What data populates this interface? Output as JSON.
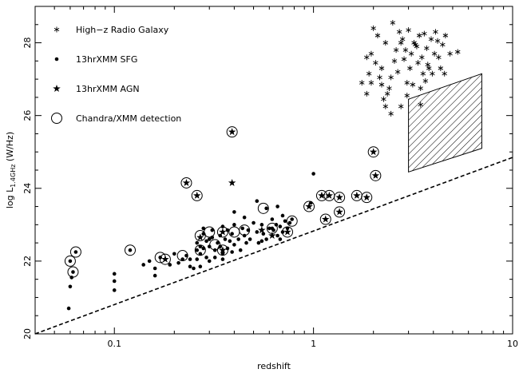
{
  "chart_data": {
    "type": "scatter",
    "title": "",
    "xlabel": "redshift",
    "ylabel_main": "log L",
    "ylabel_sub": "1.4GHz",
    "ylabel_unit": " (W/Hz)",
    "x_scale": "log",
    "xlim": [
      0.04,
      10
    ],
    "ylim": [
      20,
      29
    ],
    "x_ticks": [
      0.1,
      1,
      10
    ],
    "x_tick_labels": [
      "0.1",
      "1",
      "10"
    ],
    "y_ticks": [
      20,
      22,
      24,
      26,
      28
    ],
    "y_tick_labels": [
      "20",
      "22",
      "24",
      "26",
      "28"
    ],
    "grid": false,
    "legend_position": "top-left",
    "legend": [
      {
        "marker": "asterisk",
        "label": "High−z Radio Galaxy"
      },
      {
        "marker": "dot",
        "label": "13hrXMM SFG"
      },
      {
        "marker": "star",
        "label": "13hrXMM AGN"
      },
      {
        "marker": "circle",
        "label": "Chandra/XMM detection"
      }
    ],
    "detection_limit_line": {
      "style": "dashed",
      "points": [
        [
          0.04,
          20.0
        ],
        [
          10,
          24.85
        ]
      ]
    },
    "hatched_region": {
      "corners": [
        [
          3.0,
          24.45
        ],
        [
          7.0,
          25.1
        ],
        [
          7.0,
          27.15
        ],
        [
          3.0,
          26.45
        ]
      ]
    },
    "series": [
      {
        "name": "High−z Radio Galaxy",
        "marker": "asterisk",
        "points": [
          [
            2.0,
            28.4
          ],
          [
            2.1,
            28.2
          ],
          [
            2.3,
            28.0
          ],
          [
            2.5,
            28.55
          ],
          [
            2.7,
            28.3
          ],
          [
            2.8,
            28.1
          ],
          [
            3.0,
            28.35
          ],
          [
            3.2,
            28.0
          ],
          [
            3.4,
            28.2
          ],
          [
            3.6,
            28.25
          ],
          [
            3.3,
            27.9
          ],
          [
            2.9,
            27.8
          ],
          [
            1.95,
            27.7
          ],
          [
            1.85,
            27.6
          ],
          [
            2.05,
            27.45
          ],
          [
            1.9,
            27.15
          ],
          [
            1.95,
            26.9
          ],
          [
            1.85,
            26.6
          ],
          [
            2.15,
            27.05
          ],
          [
            2.2,
            27.3
          ],
          [
            2.4,
            26.75
          ],
          [
            2.55,
            27.5
          ],
          [
            2.6,
            27.8
          ],
          [
            2.65,
            27.2
          ],
          [
            2.75,
            28.0
          ],
          [
            2.85,
            27.55
          ],
          [
            3.1,
            27.7
          ],
          [
            3.25,
            27.95
          ],
          [
            3.5,
            27.6
          ],
          [
            3.7,
            27.85
          ],
          [
            3.8,
            27.3
          ],
          [
            3.55,
            27.15
          ],
          [
            3.35,
            27.45
          ],
          [
            3.05,
            27.3
          ],
          [
            2.95,
            26.9
          ],
          [
            3.15,
            26.85
          ],
          [
            3.45,
            26.75
          ],
          [
            3.65,
            26.95
          ],
          [
            3.75,
            27.4
          ],
          [
            3.95,
            27.15
          ],
          [
            4.05,
            27.7
          ],
          [
            4.25,
            27.6
          ],
          [
            4.35,
            27.3
          ],
          [
            4.55,
            27.15
          ],
          [
            4.85,
            27.7
          ],
          [
            4.45,
            27.95
          ],
          [
            4.2,
            28.05
          ],
          [
            4.1,
            28.3
          ],
          [
            3.9,
            28.1
          ],
          [
            4.6,
            28.2
          ],
          [
            5.3,
            27.75
          ],
          [
            2.45,
            27.05
          ],
          [
            2.35,
            26.6
          ],
          [
            2.25,
            26.45
          ],
          [
            2.2,
            26.85
          ],
          [
            2.95,
            26.55
          ],
          [
            3.45,
            26.3
          ],
          [
            2.75,
            26.25
          ],
          [
            2.3,
            26.25
          ],
          [
            1.75,
            26.9
          ],
          [
            2.45,
            26.05
          ]
        ]
      },
      {
        "name": "13hrXMM SFG",
        "marker": "dot",
        "points": [
          [
            0.06,
            22.0
          ],
          [
            0.062,
            21.7
          ],
          [
            0.064,
            22.25
          ],
          [
            0.061,
            21.55
          ],
          [
            0.06,
            21.3
          ],
          [
            0.059,
            20.7
          ],
          [
            0.1,
            21.65
          ],
          [
            0.1,
            21.45
          ],
          [
            0.1,
            21.2
          ],
          [
            0.12,
            22.3
          ],
          [
            0.14,
            21.9
          ],
          [
            0.15,
            22.0
          ],
          [
            0.16,
            21.8
          ],
          [
            0.16,
            21.6
          ],
          [
            0.17,
            22.1
          ],
          [
            0.19,
            21.9
          ],
          [
            0.2,
            22.2
          ],
          [
            0.21,
            21.95
          ],
          [
            0.22,
            22.05
          ],
          [
            0.23,
            22.15
          ],
          [
            0.24,
            21.85
          ],
          [
            0.25,
            21.8
          ],
          [
            0.26,
            22.05
          ],
          [
            0.26,
            22.3
          ],
          [
            0.26,
            22.5
          ],
          [
            0.27,
            22.2
          ],
          [
            0.27,
            22.4
          ],
          [
            0.28,
            22.35
          ],
          [
            0.28,
            22.75
          ],
          [
            0.29,
            22.1
          ],
          [
            0.29,
            22.55
          ],
          [
            0.3,
            22.0
          ],
          [
            0.3,
            22.4
          ],
          [
            0.31,
            22.65
          ],
          [
            0.31,
            22.85
          ],
          [
            0.32,
            22.3
          ],
          [
            0.32,
            22.1
          ],
          [
            0.33,
            22.5
          ],
          [
            0.34,
            22.7
          ],
          [
            0.34,
            22.4
          ],
          [
            0.35,
            22.2
          ],
          [
            0.35,
            22.05
          ],
          [
            0.36,
            22.6
          ],
          [
            0.37,
            22.85
          ],
          [
            0.37,
            22.35
          ],
          [
            0.38,
            22.55
          ],
          [
            0.39,
            22.75
          ],
          [
            0.39,
            22.25
          ],
          [
            0.4,
            22.45
          ],
          [
            0.4,
            23.0
          ],
          [
            0.42,
            22.6
          ],
          [
            0.43,
            22.3
          ],
          [
            0.44,
            22.9
          ],
          [
            0.45,
            22.7
          ],
          [
            0.46,
            22.5
          ],
          [
            0.47,
            22.85
          ],
          [
            0.48,
            22.6
          ],
          [
            0.5,
            23.05
          ],
          [
            0.52,
            22.8
          ],
          [
            0.53,
            22.5
          ],
          [
            0.55,
            23.0
          ],
          [
            0.56,
            22.75
          ],
          [
            0.58,
            22.6
          ],
          [
            0.6,
            22.9
          ],
          [
            0.62,
            23.15
          ],
          [
            0.63,
            22.85
          ],
          [
            0.65,
            23.0
          ],
          [
            0.66,
            22.7
          ],
          [
            0.68,
            22.95
          ],
          [
            0.7,
            22.8
          ],
          [
            0.72,
            23.1
          ],
          [
            0.74,
            22.9
          ],
          [
            0.76,
            23.05
          ],
          [
            0.52,
            23.65
          ],
          [
            0.58,
            23.45
          ],
          [
            0.4,
            23.35
          ],
          [
            0.45,
            23.2
          ],
          [
            0.66,
            23.5
          ],
          [
            0.7,
            23.25
          ],
          [
            0.35,
            22.95
          ],
          [
            0.3,
            22.6
          ],
          [
            0.28,
            22.9
          ],
          [
            0.27,
            21.85
          ],
          [
            0.24,
            22.05
          ],
          [
            0.55,
            22.55
          ],
          [
            0.62,
            22.9
          ],
          [
            0.68,
            22.6
          ],
          [
            0.78,
            23.15
          ],
          [
            1.0,
            24.4
          ],
          [
            0.97,
            23.6
          ]
        ]
      },
      {
        "name": "13hrXMM AGN",
        "marker": "star",
        "points": [
          [
            0.23,
            24.15
          ],
          [
            0.26,
            23.8
          ],
          [
            0.39,
            25.55
          ],
          [
            0.39,
            24.15
          ],
          [
            0.35,
            22.8
          ],
          [
            0.27,
            22.65
          ],
          [
            0.18,
            22.05
          ],
          [
            0.35,
            22.3
          ],
          [
            0.55,
            22.85
          ],
          [
            0.62,
            22.7
          ],
          [
            0.74,
            22.8
          ],
          [
            0.95,
            23.5
          ],
          [
            1.1,
            23.8
          ],
          [
            1.15,
            23.15
          ],
          [
            1.2,
            23.8
          ],
          [
            1.35,
            23.75
          ],
          [
            1.65,
            23.8
          ],
          [
            1.85,
            23.75
          ],
          [
            2.0,
            25.0
          ],
          [
            2.05,
            24.35
          ],
          [
            1.35,
            23.35
          ]
        ]
      },
      {
        "name": "Chandra/XMM detection",
        "marker": "circle",
        "points": [
          [
            0.06,
            22.0
          ],
          [
            0.062,
            21.7
          ],
          [
            0.064,
            22.25
          ],
          [
            0.12,
            22.3
          ],
          [
            0.17,
            22.1
          ],
          [
            0.22,
            22.15
          ],
          [
            0.23,
            24.15
          ],
          [
            0.26,
            23.8
          ],
          [
            0.27,
            22.7
          ],
          [
            0.27,
            22.3
          ],
          [
            0.3,
            22.8
          ],
          [
            0.35,
            22.8
          ],
          [
            0.35,
            22.3
          ],
          [
            0.39,
            25.55
          ],
          [
            0.4,
            22.8
          ],
          [
            0.45,
            22.85
          ],
          [
            0.56,
            23.45
          ],
          [
            0.62,
            22.9
          ],
          [
            0.74,
            22.8
          ],
          [
            0.78,
            23.1
          ],
          [
            0.95,
            23.5
          ],
          [
            1.1,
            23.8
          ],
          [
            1.15,
            23.15
          ],
          [
            1.2,
            23.8
          ],
          [
            1.35,
            23.75
          ],
          [
            1.35,
            23.35
          ],
          [
            1.65,
            23.8
          ],
          [
            1.85,
            23.75
          ],
          [
            2.0,
            25.0
          ],
          [
            2.05,
            24.35
          ],
          [
            0.18,
            22.05
          ],
          [
            0.32,
            22.45
          ]
        ]
      }
    ]
  }
}
